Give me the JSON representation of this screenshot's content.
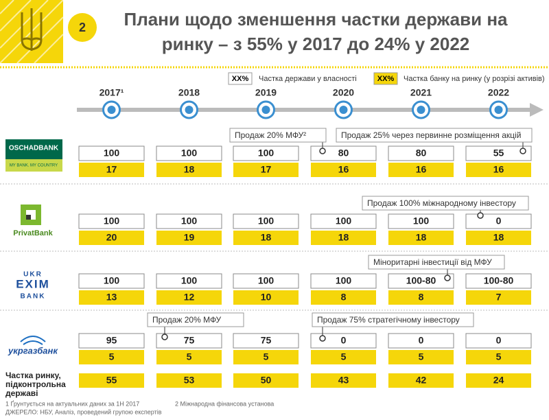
{
  "header": {
    "badge": "2",
    "title_line1": "Плани щодо зменшення частки держави на",
    "title_line2": "ринку – з 55% у 2017 до 24% у 2022"
  },
  "legend": [
    {
      "sample": "XX%",
      "label": "Частка держави у власності"
    },
    {
      "sample": "XX%",
      "label": "Частка банку на ринку (у розрізі активів)"
    }
  ],
  "years": [
    "2017¹",
    "2018",
    "2019",
    "2020",
    "2021",
    "2022"
  ],
  "banks": [
    {
      "logo": [
        "OSCHADBANK",
        "MY BANK. MY COUNTRY"
      ],
      "callouts": [
        "Продаж 20% МФУ²",
        "Продаж 25% через первинне розміщення акцій"
      ],
      "state_share": [
        100,
        100,
        100,
        80,
        80,
        55
      ],
      "market_share": [
        17,
        18,
        17,
        16,
        16,
        16
      ]
    },
    {
      "logo": [
        "PrivatBank"
      ],
      "callouts": [
        "Продаж 100% міжнародному інвестору"
      ],
      "state_share": [
        100,
        100,
        100,
        100,
        100,
        0
      ],
      "market_share": [
        20,
        19,
        18,
        18,
        18,
        18
      ]
    },
    {
      "logo": [
        "UKR",
        "EXIM",
        "BANK"
      ],
      "callouts": [
        "Міноритарні інвестиції від МФУ"
      ],
      "state_share": [
        100,
        100,
        100,
        100,
        "100-80",
        "100-80"
      ],
      "market_share": [
        13,
        12,
        10,
        8,
        8,
        7
      ]
    },
    {
      "logo": [
        "укргазбанк"
      ],
      "callouts": [
        "Продаж 20% МФУ",
        "Продаж 75% стратегічному інвестору"
      ],
      "state_share": [
        95,
        75,
        75,
        0,
        0,
        0
      ],
      "market_share": [
        5,
        5,
        5,
        5,
        5,
        5
      ]
    }
  ],
  "totals": {
    "label": [
      "Частка ринку,",
      "підконтрольна",
      "державі"
    ],
    "values": [
      55,
      53,
      50,
      43,
      42,
      24
    ]
  },
  "footnotes": [
    "1 Ґрунтується на актуальних даних за 1Н 2017",
    "2 Міжнародна фінансова установа",
    "ДЖЕРЕЛО: НБУ, Аналіз, проведений групою експертів"
  ]
}
